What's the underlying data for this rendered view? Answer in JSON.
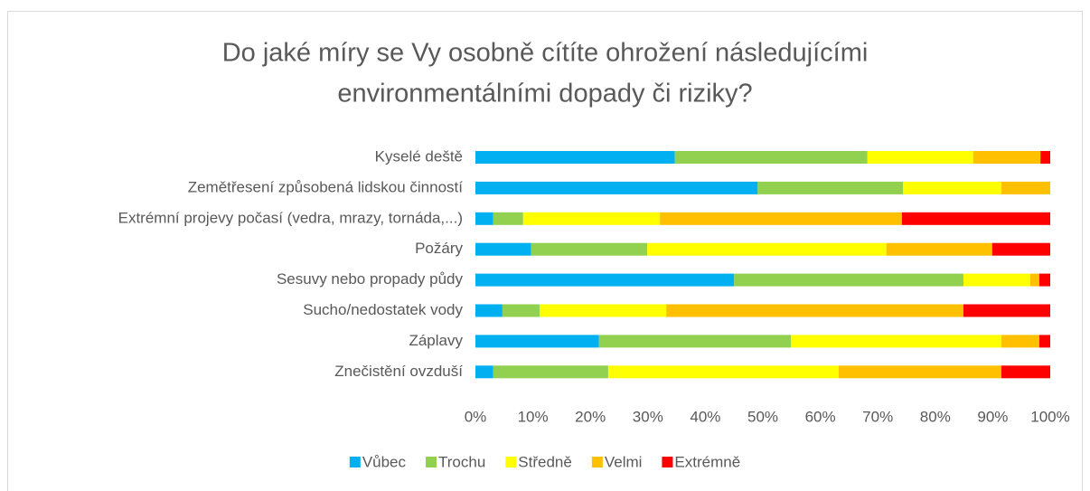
{
  "chart_data": {
    "type": "stacked_bar_horizontal",
    "title": [
      "Do jaké míry se Vy osobně cítíte ohrožení následujícími",
      "environmentálními dopady či riziky?"
    ],
    "categories": [
      "Kyselé deště",
      "Zemětřesení způsobená lidskou činností",
      "Extrémní projevy počasí (vedra, mrazy, tornáda,...)",
      "Požáry",
      "Sesuvy nebo propady půdy",
      "Sucho/nedostatek vody",
      "Záplavy",
      "Znečistění ovzduší"
    ],
    "series": [
      {
        "name": "Vůbec",
        "color": "#00b0f0",
        "values": [
          34.7,
          49.1,
          3.1,
          9.7,
          45.0,
          4.7,
          21.5,
          3.1
        ]
      },
      {
        "name": "Trochu",
        "color": "#92d050",
        "values": [
          33.5,
          25.3,
          5.2,
          20.2,
          39.9,
          6.5,
          33.4,
          20.0
        ]
      },
      {
        "name": "Středně",
        "color": "#ffff00",
        "values": [
          18.4,
          17.1,
          23.8,
          41.6,
          11.6,
          22.0,
          36.6,
          40.1
        ]
      },
      {
        "name": "Velmi",
        "color": "#ffc000",
        "values": [
          11.7,
          8.5,
          42.1,
          18.4,
          1.6,
          51.7,
          6.6,
          28.3
        ]
      },
      {
        "name": "Extrémně",
        "color": "#ff0000",
        "values": [
          1.7,
          0,
          25.8,
          10.1,
          1.9,
          15.1,
          1.9,
          8.5
        ]
      }
    ],
    "xlim": [
      0,
      100
    ],
    "xticks": [
      {
        "value": 0,
        "label": "0%"
      },
      {
        "value": 10,
        "label": "10%"
      },
      {
        "value": 20,
        "label": "20%"
      },
      {
        "value": 30,
        "label": "30%"
      },
      {
        "value": 40,
        "label": "40%"
      },
      {
        "value": 50,
        "label": "50%"
      },
      {
        "value": 60,
        "label": "60%"
      },
      {
        "value": 70,
        "label": "70%"
      },
      {
        "value": 80,
        "label": "80%"
      },
      {
        "value": 90,
        "label": "90%"
      },
      {
        "value": 100,
        "label": "100%"
      }
    ],
    "grid": false,
    "legend": "bottom"
  }
}
